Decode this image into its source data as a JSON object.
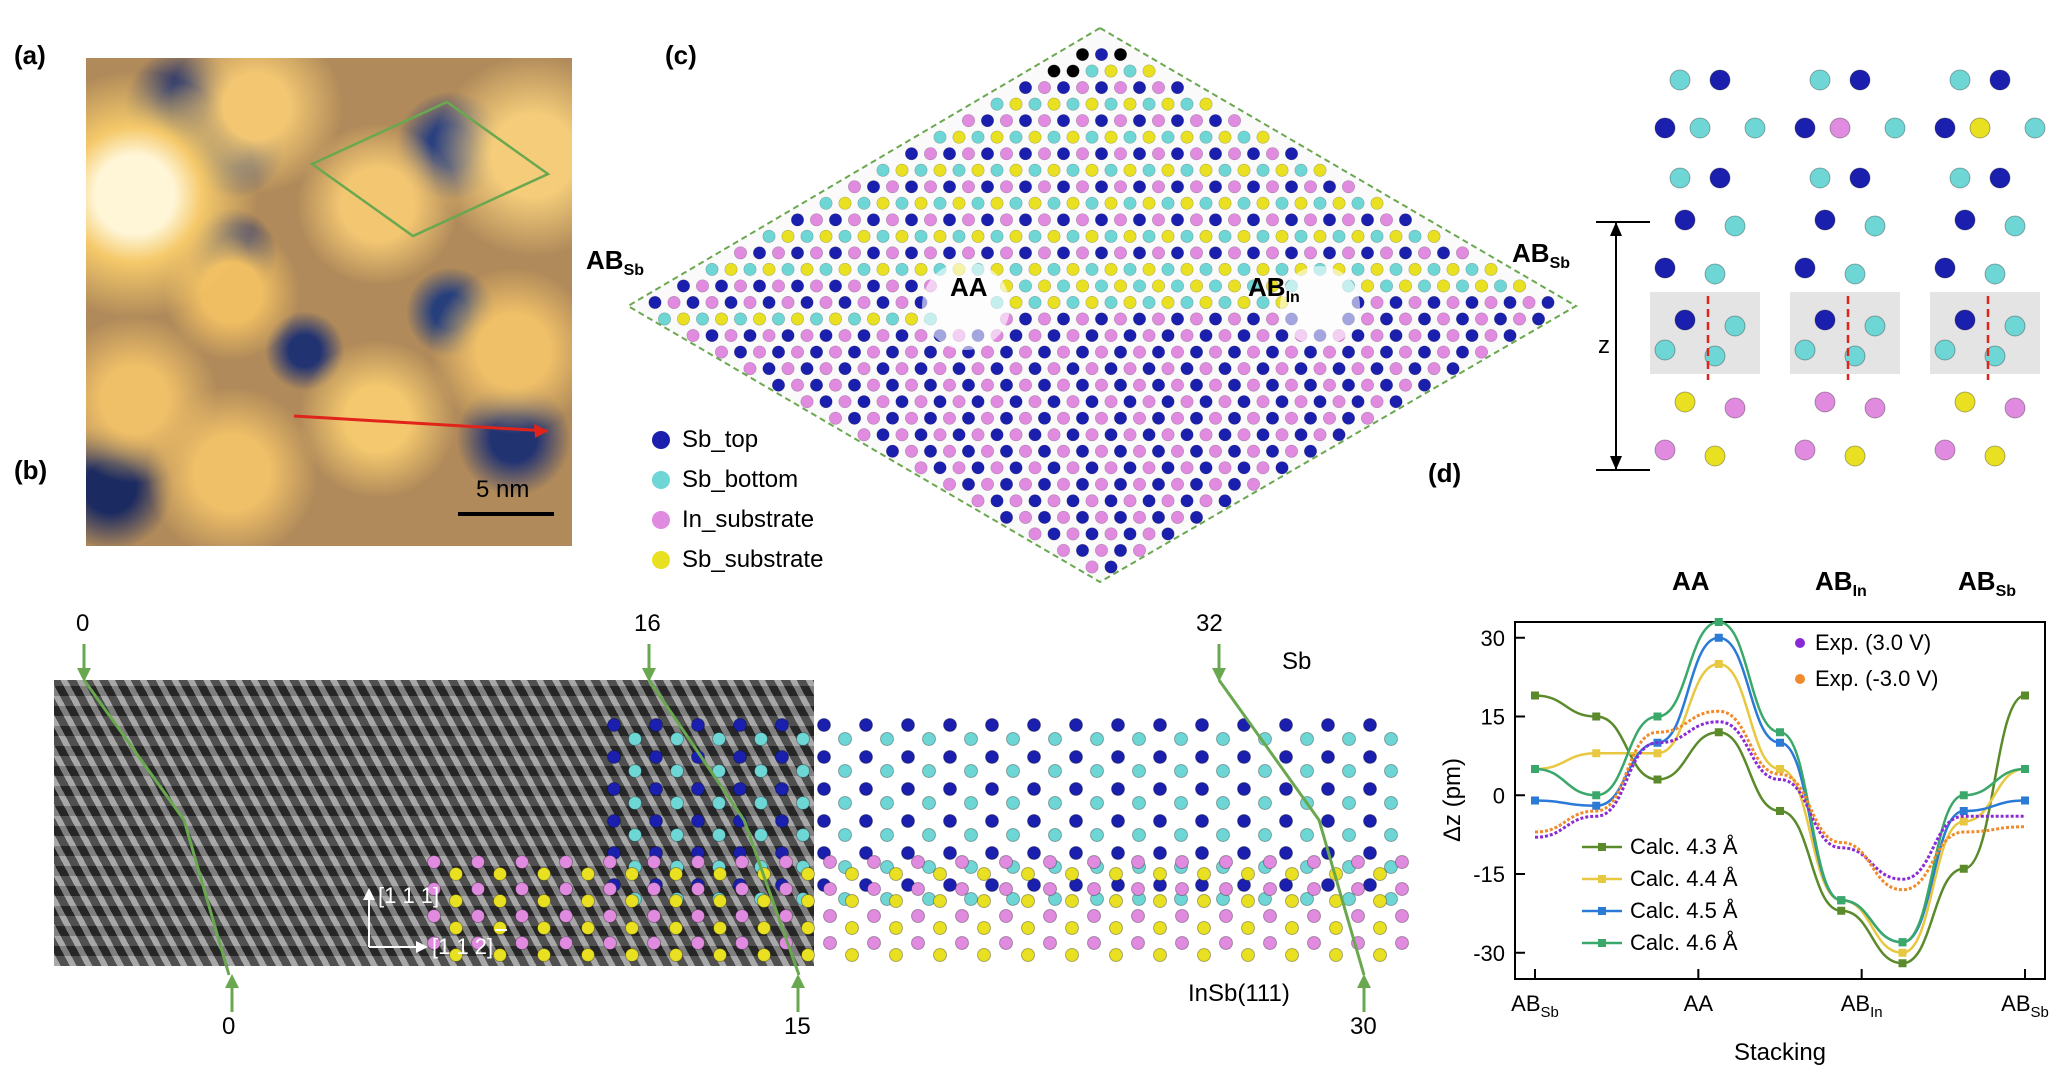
{
  "panels": {
    "a": "(a)",
    "b": "(b)",
    "c": "(c)",
    "d": "(d)"
  },
  "panel_a": {
    "scale_bar": "5 nm"
  },
  "panel_b": {
    "top_markers": [
      "0",
      "16",
      "32"
    ],
    "bottom_markers": [
      "0",
      "15",
      "30"
    ],
    "label_sb": "Sb",
    "label_substrate": "InSb(111)",
    "axis_up": "[1 1 1]",
    "axis_right": "[1 1 2]"
  },
  "panel_c": {
    "site_left": "AB",
    "site_left_sub": "Sb",
    "site_center": "AA",
    "site_right_center": "AB",
    "site_right_center_sub": "In",
    "site_right": "AB",
    "site_right_sub": "Sb",
    "legend": [
      {
        "label": "Sb_top",
        "color": "#1b1fae"
      },
      {
        "label": "Sb_bottom",
        "color": "#6fd6d6"
      },
      {
        "label": "In_substrate",
        "color": "#e08be0"
      },
      {
        "label": "Sb_substrate",
        "color": "#e8e021"
      }
    ],
    "side_labels": [
      {
        "main": "AA",
        "sub": ""
      },
      {
        "main": "AB",
        "sub": "In"
      },
      {
        "main": "AB",
        "sub": "Sb"
      }
    ],
    "z_label": "z"
  },
  "colors": {
    "sb_top": "#1b1fae",
    "sb_bottom": "#6fd6d6",
    "in_sub": "#e08be0",
    "sb_sub": "#e8e021",
    "green_line": "#6aa84f",
    "red_line": "#e0241b"
  },
  "chart_data": {
    "type": "line",
    "xlabel": "Stacking",
    "ylabel": "Δz (pm)",
    "ylim": [
      -35,
      33
    ],
    "x_ticks": [
      {
        "main": "AB",
        "sub": "Sb"
      },
      {
        "main": "AA",
        "sub": ""
      },
      {
        "main": "AB",
        "sub": "In"
      },
      {
        "main": "AB",
        "sub": "Sb"
      }
    ],
    "y_ticks": [
      30,
      15,
      0,
      -15,
      -30
    ],
    "x": [
      0,
      0.125,
      0.25,
      0.375,
      0.5,
      0.625,
      0.75,
      0.875,
      1.0
    ],
    "series": [
      {
        "name": "Calc. 4.3 Å",
        "color": "#5a8a2a",
        "kind": "calc",
        "values": [
          19,
          15,
          3,
          12,
          -3,
          -22,
          -32,
          -14,
          19
        ]
      },
      {
        "name": "Calc. 4.4 Å",
        "color": "#e8c840",
        "kind": "calc",
        "values": [
          5,
          8,
          8,
          25,
          5,
          -20,
          -30,
          -5,
          5
        ]
      },
      {
        "name": "Calc. 4.5 Å",
        "color": "#2a7ad6",
        "kind": "calc",
        "values": [
          -1,
          -2,
          10,
          30,
          10,
          -20,
          -28,
          -3,
          -1
        ]
      },
      {
        "name": "Calc. 4.6 Å",
        "color": "#3aa86a",
        "kind": "calc",
        "values": [
          5,
          0,
          15,
          33,
          12,
          -20,
          -28,
          0,
          5
        ]
      },
      {
        "name": "Exp. (3.0 V)",
        "color": "#8a2ad6",
        "kind": "exp",
        "values": [
          -8,
          -4,
          10,
          14,
          3,
          -10,
          -16,
          -4,
          -4
        ]
      },
      {
        "name": "Exp. (-3.0 V)",
        "color": "#f08a2a",
        "kind": "exp",
        "values": [
          -7,
          -3,
          12,
          16,
          4,
          -9,
          -18,
          -7,
          -6
        ]
      }
    ]
  }
}
